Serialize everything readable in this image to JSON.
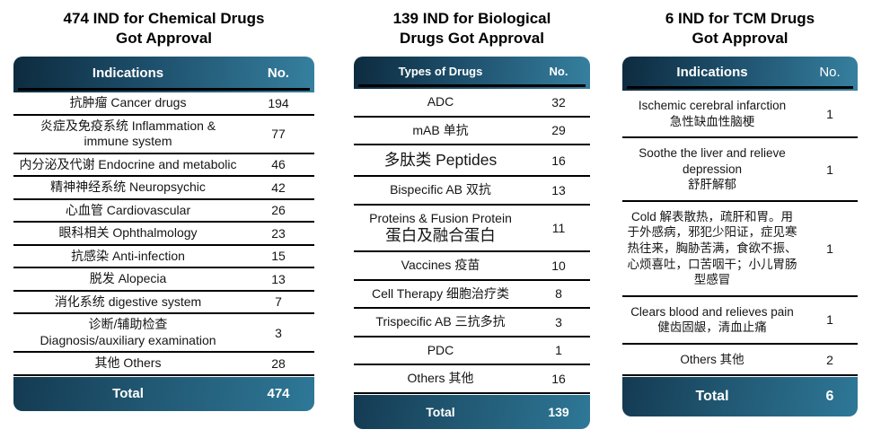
{
  "colors": {
    "header_gradient_left": "#0d2b3f",
    "header_gradient_right": "#36809f",
    "total_gradient_left": "#143a52",
    "total_gradient_right": "#2e7897",
    "separator_line": "#000000",
    "header_text": "#ffffff",
    "row_text": "#151515",
    "background": "#ffffff"
  },
  "chart_data": [
    {
      "type": "table",
      "id": "chemical",
      "title": "474 IND for Chemical Drugs\nGot Approval",
      "columns": {
        "col1": "Indications",
        "col2": "No."
      },
      "rows": [
        {
          "label": "抗肿瘤 Cancer drugs",
          "value": "194"
        },
        {
          "label": "炎症及免疫系统 Inflammation &\nimmune system",
          "value": "77"
        },
        {
          "label": "内分泌及代谢 Endocrine and metabolic",
          "value": "46"
        },
        {
          "label": "精神神经系统 Neuropsychic",
          "value": "42"
        },
        {
          "label": "心血管 Cardiovascular",
          "value": "26"
        },
        {
          "label": "眼科相关 Ophthalmology",
          "value": "23"
        },
        {
          "label": "抗感染 Anti-infection",
          "value": "15"
        },
        {
          "label": "脱发 Alopecia",
          "value": "13"
        },
        {
          "label": "消化系统 digestive system",
          "value": "7"
        },
        {
          "label": "诊断/辅助检查\nDiagnosis/auxiliary examination",
          "value": "3"
        },
        {
          "label": "其他 Others",
          "value": "28"
        }
      ],
      "total": {
        "label": "Total",
        "value": "474"
      }
    },
    {
      "type": "table",
      "id": "biological",
      "title": "139 IND for Biological\nDrugs Got Approval",
      "columns": {
        "col1": "Types of Drugs",
        "col2": "No."
      },
      "rows": [
        {
          "label": "ADC",
          "value": "32"
        },
        {
          "label": "mAB 单抗",
          "value": "29"
        },
        {
          "label": "多肽类 Peptides",
          "value": "16",
          "large": true
        },
        {
          "label": "Bispecific AB 双抗",
          "value": "13"
        },
        {
          "label": "Proteins & Fusion Protein\n蛋白及融合蛋白",
          "value": "11",
          "large_line2": true
        },
        {
          "label": "Vaccines 疫苗",
          "value": "10"
        },
        {
          "label": "Cell Therapy 细胞治疗类",
          "value": "8"
        },
        {
          "label": "Trispecific AB 三抗多抗",
          "value": "3"
        },
        {
          "label": "PDC",
          "value": "1"
        },
        {
          "label": "Others 其他",
          "value": "16"
        }
      ],
      "total": {
        "label": "Total",
        "value": "139"
      }
    },
    {
      "type": "table",
      "id": "tcm",
      "title": "6 IND for TCM Drugs\nGot Approval",
      "columns": {
        "col1": "Indications",
        "col2": "No."
      },
      "rows": [
        {
          "label": "Ischemic cerebral infarction\n急性缺血性脑梗",
          "value": "1"
        },
        {
          "label": "Soothe the liver and relieve depression\n舒肝解郁",
          "value": "1"
        },
        {
          "label": "Cold 解表散热，疏肝和胃。用于外感病，邪犯少阳证，症见寒热往来，胸胁苦满，食欲不振、心烦喜吐，口苦咽干；小儿胃肠型感冒",
          "value": "1"
        },
        {
          "label": "Clears blood and relieves pain\n健齿固龈，清血止痛",
          "value": "1"
        },
        {
          "label": "Others 其他",
          "value": "2"
        }
      ],
      "total": {
        "label": "Total",
        "value": "6"
      }
    }
  ]
}
